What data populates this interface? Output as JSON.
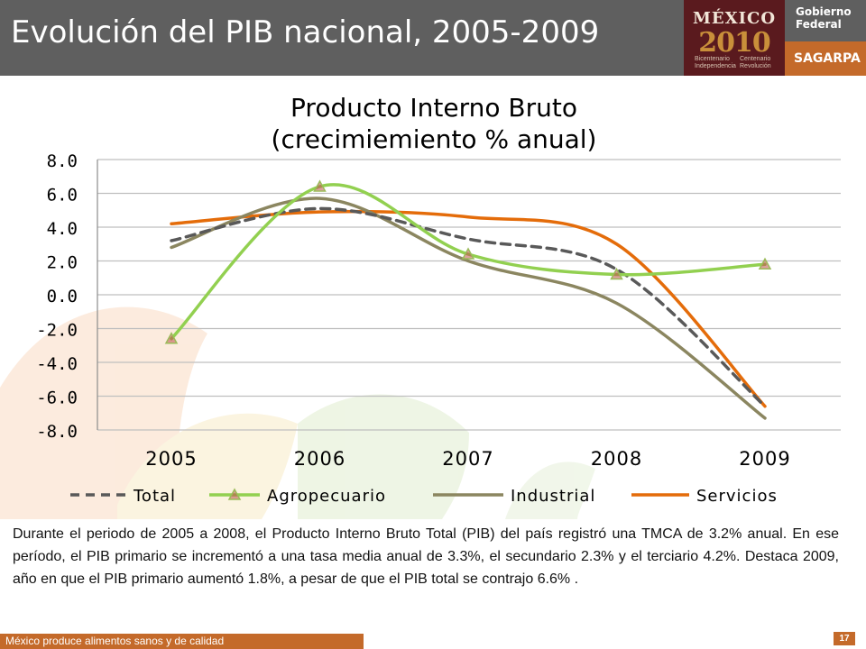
{
  "header": {
    "title": "Evolución del PIB nacional, 2005-2009",
    "logo_mexico": "MÉXICO",
    "logo_year": "2010",
    "logo_bicentenario": "Bicentenario Independencia",
    "logo_centenario": "Centenario Revolución",
    "gobierno_label": "Gobierno Federal",
    "sagarpa_label": "SAGARPA"
  },
  "chart_data": {
    "type": "line",
    "title_line1": "Producto Interno Bruto",
    "title_line2": "(crecimiemiento % anual)",
    "categories": [
      "2005",
      "2006",
      "2007",
      "2008",
      "2009"
    ],
    "ylim": [
      -8.0,
      8.0
    ],
    "yticks": [
      "8.0",
      "6.0",
      "4.0",
      "2.0",
      "0.0",
      "-2.0",
      "-4.0",
      "-6.0",
      "-8.0"
    ],
    "grid": true,
    "legend_position": "bottom",
    "series": [
      {
        "name": "Total",
        "values": [
          3.2,
          5.1,
          3.3,
          1.5,
          -6.6
        ],
        "color": "#595959",
        "dash": true,
        "marker": false
      },
      {
        "name": "Agropecuario",
        "values": [
          -2.6,
          6.4,
          2.4,
          1.2,
          1.8
        ],
        "color": "#92d050",
        "dash": false,
        "marker": true
      },
      {
        "name": "Industrial",
        "values": [
          2.8,
          5.7,
          2.0,
          -0.5,
          -7.3
        ],
        "color": "#8b8660",
        "dash": false,
        "marker": false
      },
      {
        "name": "Servicios",
        "values": [
          4.2,
          4.9,
          4.6,
          3.0,
          -6.6
        ],
        "color": "#e46c0a",
        "dash": false,
        "marker": false
      }
    ]
  },
  "body_text": "Durante el periodo de 2005 a 2008, el Producto Interno Bruto Total (PIB) del país registró una TMCA de 3.2% anual. En ese período, el PIB primario se incrementó a una tasa media anual de 3.3%, el secundario 2.3% y el terciario 4.2%. Destaca 2009, año en que el PIB primario aumentó 1.8%, a pesar de que el PIB total se contrajo 6.6% .",
  "footer": {
    "tagline": "México produce alimentos sanos y de calidad",
    "page_number": "17"
  },
  "colors": {
    "header_gray": "#5f5f5f",
    "accent_orange": "#c46a2a",
    "logo_maroon": "#5a1a1e"
  }
}
